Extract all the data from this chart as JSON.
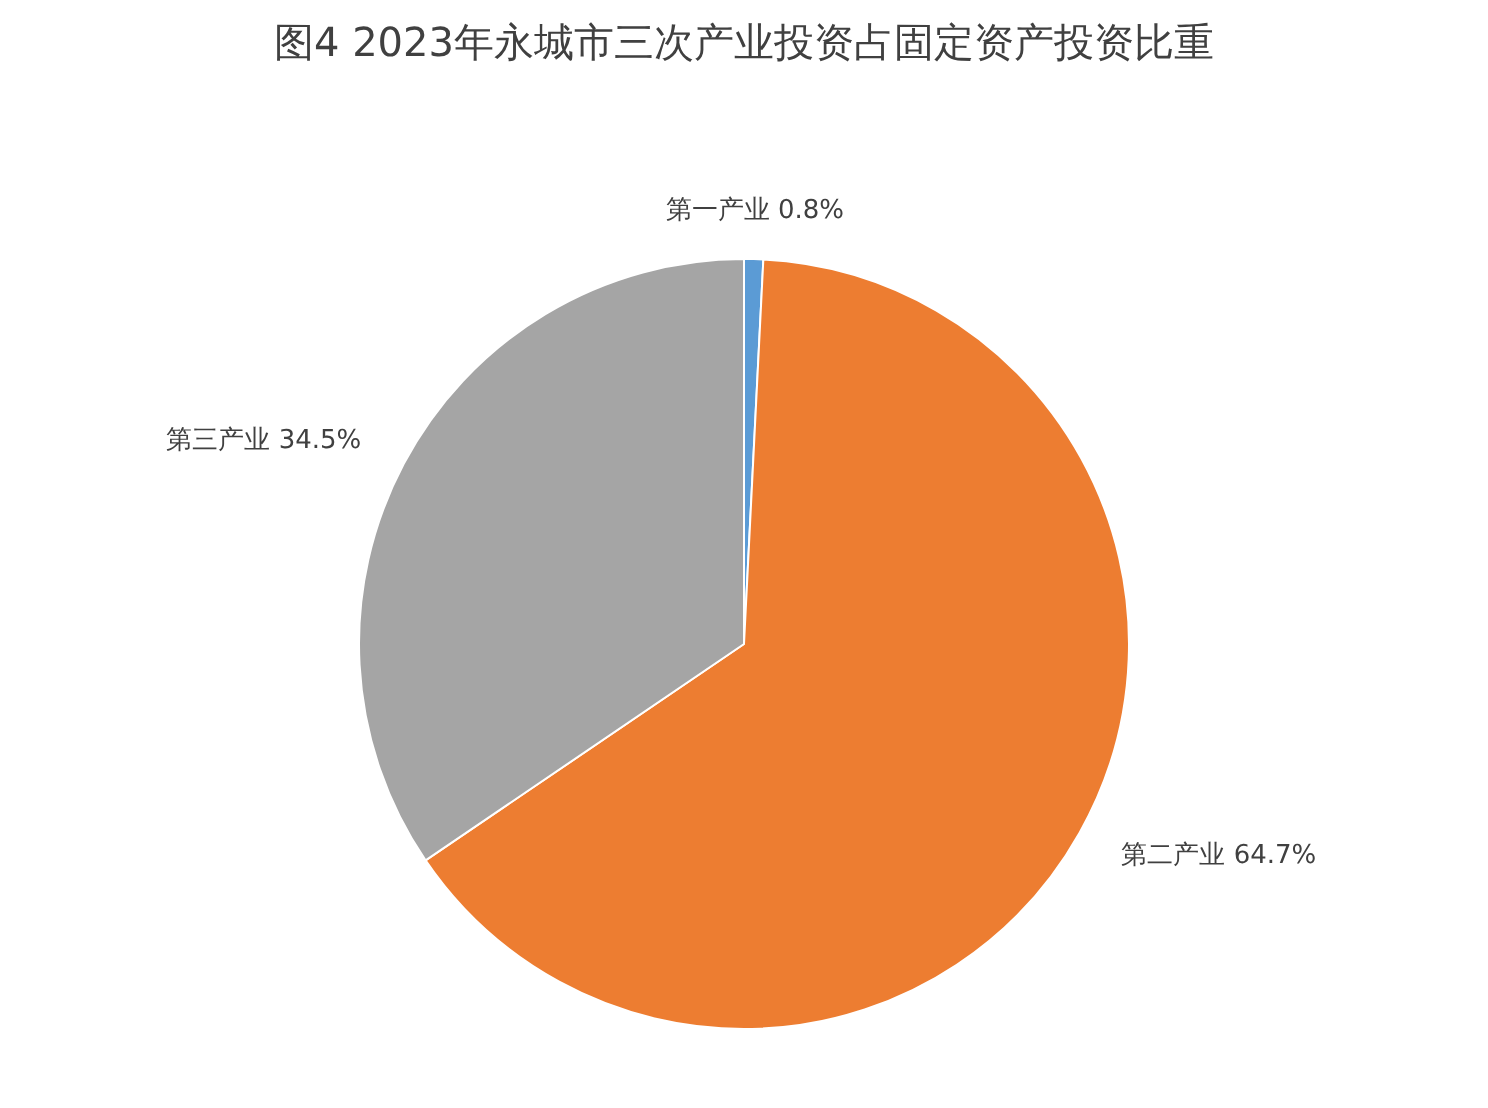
{
  "chart_data": {
    "type": "pie",
    "title": "图4  2023年永城市三次产业投资占固定资产投资比重",
    "categories": [
      "第一产业",
      "第二产业",
      "第三产业"
    ],
    "values": [
      0.8,
      64.7,
      34.5
    ],
    "value_labels": [
      "0.8%",
      "64.7%",
      "34.5%"
    ],
    "colors": [
      "#5b9bd5",
      "#ed7d31",
      "#a5a5a5"
    ],
    "legend": false
  }
}
